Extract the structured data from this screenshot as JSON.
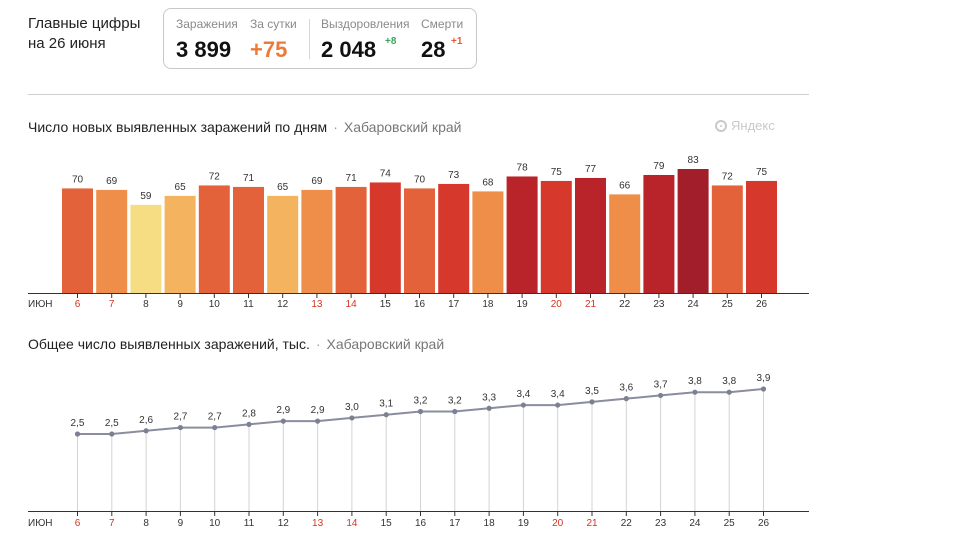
{
  "header": {
    "title_line1": "Главные цифры",
    "title_line2": "на 26 июня"
  },
  "stats": {
    "infections_label": "Заражения",
    "infections_value": "3 899",
    "daily_label": "За сутки",
    "daily_value": "+75",
    "recoveries_label": "Выздоровления",
    "recoveries_value": "2 048",
    "recoveries_delta": "+8",
    "deaths_label": "Смерти",
    "deaths_value": "28",
    "deaths_delta": "+1"
  },
  "watermark": {
    "text": "Яндекс"
  },
  "colors": {
    "weekend_tick": "#d7331c",
    "weekday_tick": "#333333",
    "line": "#8a8d9e",
    "point": "#7d8094",
    "scale": [
      "#f6dc82",
      "#f4b35e",
      "#ee8e48",
      "#e4623a",
      "#d6382b",
      "#b8242a",
      "#a21e2b"
    ]
  },
  "chart_data": [
    {
      "type": "bar",
      "title": "Число новых выявленных заражений по дням",
      "region": "Хабаровский край",
      "month_label": "ИЮН",
      "categories": [
        "6",
        "7",
        "8",
        "9",
        "10",
        "11",
        "12",
        "13",
        "14",
        "15",
        "16",
        "17",
        "18",
        "19",
        "20",
        "21",
        "22",
        "23",
        "24",
        "25",
        "26"
      ],
      "weekend": [
        true,
        true,
        false,
        false,
        false,
        false,
        false,
        true,
        true,
        false,
        false,
        false,
        false,
        false,
        true,
        true,
        false,
        false,
        false,
        false,
        false
      ],
      "values": [
        70,
        69,
        59,
        65,
        72,
        71,
        65,
        69,
        71,
        74,
        70,
        73,
        68,
        78,
        75,
        77,
        66,
        79,
        83,
        72,
        75
      ],
      "ylim": [
        0,
        90
      ],
      "grid": false
    },
    {
      "type": "line",
      "title": "Общее число выявленных заражений, тыс.",
      "region": "Хабаровский край",
      "month_label": "ИЮН",
      "categories": [
        "6",
        "7",
        "8",
        "9",
        "10",
        "11",
        "12",
        "13",
        "14",
        "15",
        "16",
        "17",
        "18",
        "19",
        "20",
        "21",
        "22",
        "23",
        "24",
        "25",
        "26"
      ],
      "weekend": [
        true,
        true,
        false,
        false,
        false,
        false,
        false,
        true,
        true,
        false,
        false,
        false,
        false,
        false,
        true,
        true,
        false,
        false,
        false,
        false,
        false
      ],
      "values": [
        2.5,
        2.5,
        2.6,
        2.7,
        2.7,
        2.8,
        2.9,
        2.9,
        3.0,
        3.1,
        3.2,
        3.2,
        3.3,
        3.4,
        3.4,
        3.5,
        3.6,
        3.7,
        3.8,
        3.8,
        3.9
      ],
      "labels": [
        "2,5",
        "2,5",
        "2,6",
        "2,7",
        "2,7",
        "2,8",
        "2,9",
        "2,9",
        "3,0",
        "3,1",
        "3,2",
        "3,2",
        "3,3",
        "3,4",
        "3,4",
        "3,5",
        "3,6",
        "3,7",
        "3,8",
        "3,8",
        "3,9"
      ],
      "ylim": [
        0,
        4.0
      ],
      "grid": false
    }
  ]
}
